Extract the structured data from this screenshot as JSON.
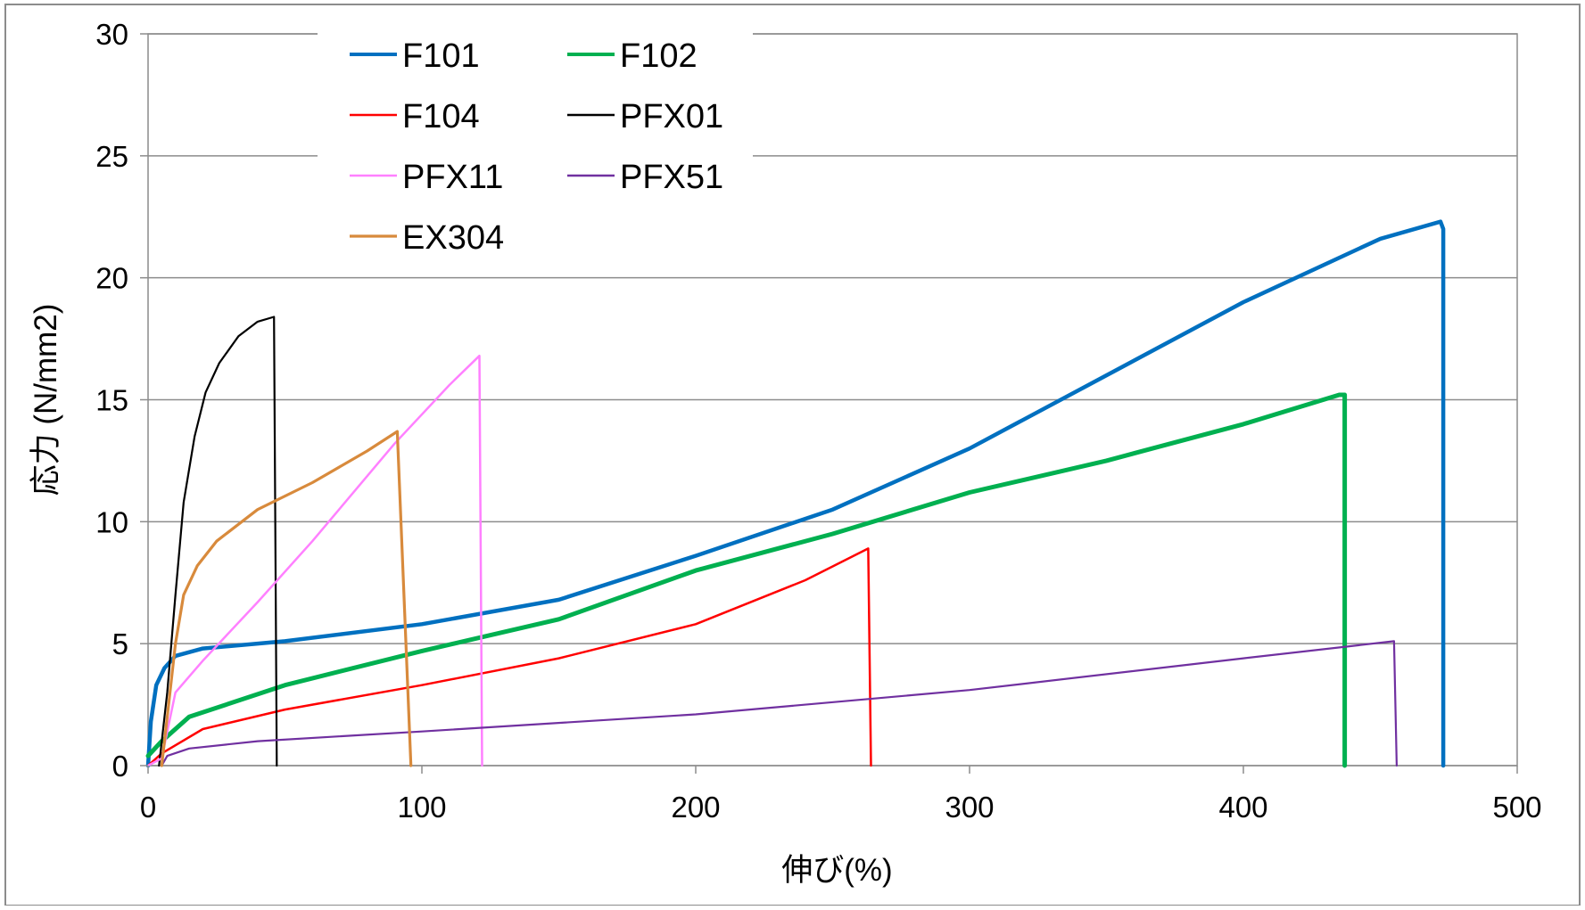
{
  "chart_data": {
    "type": "line",
    "title": "",
    "xlabel": "伸び(%)",
    "ylabel": "応力 (N/mm2)",
    "xlim": [
      0,
      500
    ],
    "ylim": [
      0,
      30
    ],
    "xticks": [
      "0",
      "100",
      "200",
      "300",
      "400",
      "500"
    ],
    "yticks": [
      "0",
      "5",
      "10",
      "15",
      "20",
      "25",
      "30"
    ],
    "grid": "horizontal",
    "legend_position": "top-left",
    "series": [
      {
        "name": "F101",
        "color": "#0070C0",
        "width": 4.5,
        "points": [
          [
            0,
            0
          ],
          [
            1,
            1.8
          ],
          [
            3,
            3.3
          ],
          [
            6,
            4.0
          ],
          [
            10,
            4.5
          ],
          [
            20,
            4.8
          ],
          [
            50,
            5.1
          ],
          [
            100,
            5.8
          ],
          [
            150,
            6.8
          ],
          [
            200,
            8.6
          ],
          [
            250,
            10.5
          ],
          [
            300,
            13.0
          ],
          [
            350,
            16.0
          ],
          [
            400,
            19.0
          ],
          [
            450,
            21.6
          ],
          [
            472,
            22.3
          ],
          [
            473,
            22.0
          ],
          [
            473,
            0
          ]
        ]
      },
      {
        "name": "F102",
        "color": "#00B050",
        "width": 5,
        "points": [
          [
            0,
            0.4
          ],
          [
            5,
            1.0
          ],
          [
            15,
            2.0
          ],
          [
            50,
            3.3
          ],
          [
            100,
            4.7
          ],
          [
            150,
            6.0
          ],
          [
            200,
            8.0
          ],
          [
            250,
            9.5
          ],
          [
            300,
            11.2
          ],
          [
            350,
            12.5
          ],
          [
            400,
            14.0
          ],
          [
            435,
            15.2
          ],
          [
            437,
            15.2
          ],
          [
            437,
            0
          ]
        ]
      },
      {
        "name": "F104",
        "color": "#FF0000",
        "width": 2.5,
        "points": [
          [
            0,
            0
          ],
          [
            5,
            0.5
          ],
          [
            20,
            1.5
          ],
          [
            50,
            2.3
          ],
          [
            100,
            3.3
          ],
          [
            150,
            4.4
          ],
          [
            200,
            5.8
          ],
          [
            240,
            7.6
          ],
          [
            263,
            8.9
          ],
          [
            264,
            0
          ]
        ]
      },
      {
        "name": "PFX01",
        "color": "#000000",
        "width": 2.2,
        "points": [
          [
            4,
            0
          ],
          [
            7,
            3
          ],
          [
            10,
            7
          ],
          [
            13,
            10.8
          ],
          [
            17,
            13.5
          ],
          [
            21,
            15.3
          ],
          [
            26,
            16.5
          ],
          [
            33,
            17.6
          ],
          [
            40,
            18.2
          ],
          [
            46,
            18.4
          ],
          [
            47,
            0
          ]
        ]
      },
      {
        "name": "PFX11",
        "color": "#FF80FF",
        "width": 2.5,
        "points": [
          [
            0,
            0
          ],
          [
            5,
            0.3
          ],
          [
            10,
            3.0
          ],
          [
            20,
            4.3
          ],
          [
            40,
            6.7
          ],
          [
            60,
            9.2
          ],
          [
            90,
            13.2
          ],
          [
            110,
            15.6
          ],
          [
            121,
            16.8
          ],
          [
            122,
            0
          ]
        ]
      },
      {
        "name": "PFX51",
        "color": "#7030A0",
        "width": 2.2,
        "points": [
          [
            5,
            0
          ],
          [
            7,
            0.4
          ],
          [
            15,
            0.7
          ],
          [
            40,
            1.0
          ],
          [
            100,
            1.4
          ],
          [
            200,
            2.1
          ],
          [
            300,
            3.1
          ],
          [
            400,
            4.4
          ],
          [
            455,
            5.1
          ],
          [
            456,
            0
          ]
        ]
      },
      {
        "name": "EX304",
        "color": "#D88A3C",
        "width": 3.2,
        "points": [
          [
            5,
            0
          ],
          [
            7,
            2
          ],
          [
            10,
            5
          ],
          [
            13,
            7.0
          ],
          [
            18,
            8.2
          ],
          [
            25,
            9.2
          ],
          [
            40,
            10.5
          ],
          [
            60,
            11.6
          ],
          [
            80,
            12.9
          ],
          [
            91,
            13.7
          ],
          [
            96,
            0
          ]
        ]
      }
    ]
  }
}
